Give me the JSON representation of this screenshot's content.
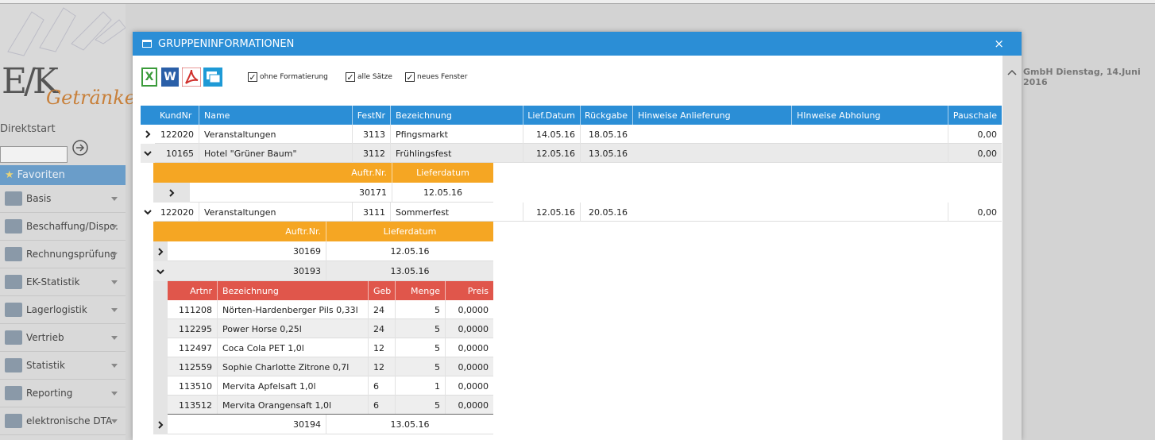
{
  "sidebar": {
    "logo_ek": "E/K",
    "logo_brand": "Getränke",
    "direktstart": "Direktstart",
    "favoriten": "Favoriten",
    "menu": [
      "Basis",
      "Beschaffung/Dispo.",
      "Rechnungsprüfung",
      "EK-Statistik",
      "Lagerlogistik",
      "Vertrieb",
      "Statistik",
      "Reporting",
      "elektronische DTA"
    ]
  },
  "header_info": "GmbH Dienstag, 14.Juni 2016",
  "dialog": {
    "title": "GRUPPENINFORMATIONEN",
    "close": "×",
    "export_icons": [
      "X",
      "W"
    ],
    "options": [
      "ohne Formatierung",
      "alle Sätze",
      "neues Fenster"
    ],
    "grid": {
      "columns": [
        "KundNr",
        "Name",
        "FestNr",
        "Bezeichnung",
        "Lief.Datum",
        "Rückgabe",
        "Hinweise Anlieferung",
        "HInweise Abholung",
        "Pauschale"
      ],
      "rows": [
        {
          "cells": [
            "122020",
            "Veranstaltungen",
            "3113",
            "Pfingsmarkt",
            "14.05.16",
            "18.05.16",
            null,
            null,
            "0,00"
          ]
        },
        {
          "cells": [
            "10165",
            "Hotel \"Grüner Baum\"",
            "3112",
            "Frühlingsfest",
            "12.05.16",
            "13.05.16",
            null,
            null,
            "0,00"
          ],
          "orders": {
            "columns": [
              "Auftr.Nr.",
              "Lieferdatum"
            ],
            "rows": [
              {
                "cells": [
                  "30171",
                  "12.05.16"
                ]
              }
            ]
          }
        },
        {
          "cells": [
            "122020",
            "Veranstaltungen",
            "3111",
            "Sommerfest",
            "12.05.16",
            "20.05.16",
            null,
            null,
            "0,00"
          ],
          "orders": {
            "columns": [
              "Auftr.Nr.",
              "Lieferdatum"
            ],
            "rows": [
              {
                "cells": [
                  "30169",
                  "12.05.16"
                ]
              },
              {
                "cells": [
                  "30193",
                  "13.05.16"
                ],
                "items": {
                  "columns": [
                    "Artnr",
                    "Bezeichnung",
                    "Geb",
                    "Menge",
                    "Preis"
                  ],
                  "rows": [
                    [
                      "111208",
                      "Nörten-Hardenberger Pils 0,33l",
                      "24",
                      "5",
                      "0,0000"
                    ],
                    [
                      "112295",
                      "Power Horse 0,25l",
                      "24",
                      "5",
                      "0,0000"
                    ],
                    [
                      "112497",
                      "Coca Cola PET 1,0l",
                      "12",
                      "5",
                      "0,0000"
                    ],
                    [
                      "112559",
                      "Sophie Charlotte Zitrone 0,7l",
                      "12",
                      "5",
                      "0,0000"
                    ],
                    [
                      "113510",
                      "Mervita Apfelsaft 1,0l",
                      "6",
                      "1",
                      "0,0000"
                    ],
                    [
                      "113512",
                      "Mervita Orangensaft 1,0l",
                      "6",
                      "5",
                      "0,0000"
                    ]
                  ]
                }
              },
              {
                "cells": [
                  "30194",
                  "13.05.16"
                ]
              }
            ]
          }
        }
      ]
    }
  }
}
